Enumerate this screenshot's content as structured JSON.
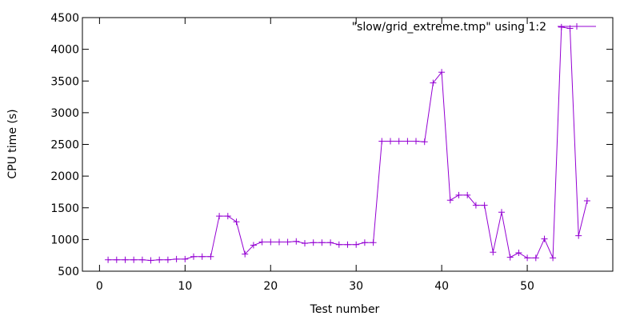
{
  "chart_data": {
    "type": "line",
    "title": "",
    "xlabel": "Test number",
    "ylabel": "CPU time (s)",
    "xlim": [
      -2,
      60
    ],
    "ylim": [
      500,
      4500
    ],
    "xticks": [
      0,
      10,
      20,
      30,
      40,
      50
    ],
    "yticks": [
      500,
      1000,
      1500,
      2000,
      2500,
      3000,
      3500,
      4000,
      4500
    ],
    "grid": false,
    "legend_position": "top-right",
    "series": [
      {
        "name": "\"slow/grid_extreme.tmp\" using 1:2",
        "color": "#9400d3",
        "marker": "plus",
        "x": [
          1,
          2,
          3,
          4,
          5,
          6,
          7,
          8,
          9,
          10,
          11,
          12,
          13,
          14,
          15,
          16,
          17,
          18,
          19,
          20,
          21,
          22,
          23,
          24,
          25,
          26,
          27,
          28,
          29,
          30,
          31,
          32,
          33,
          34,
          35,
          36,
          37,
          38,
          39,
          40,
          41,
          42,
          43,
          44,
          45,
          46,
          47,
          48,
          49,
          50,
          51,
          52,
          53,
          54,
          55,
          56,
          57
        ],
        "y": [
          680,
          680,
          680,
          680,
          680,
          670,
          680,
          680,
          690,
          690,
          730,
          730,
          730,
          1370,
          1370,
          1280,
          770,
          910,
          960,
          960,
          960,
          960,
          970,
          940,
          950,
          950,
          950,
          920,
          920,
          920,
          950,
          950,
          2550,
          2550,
          2550,
          2550,
          2550,
          2540,
          3470,
          3640,
          1620,
          1700,
          1700,
          1540,
          1540,
          800,
          1430,
          720,
          790,
          710,
          710,
          1010,
          710,
          4350,
          4330,
          1060,
          1610
        ]
      }
    ]
  }
}
